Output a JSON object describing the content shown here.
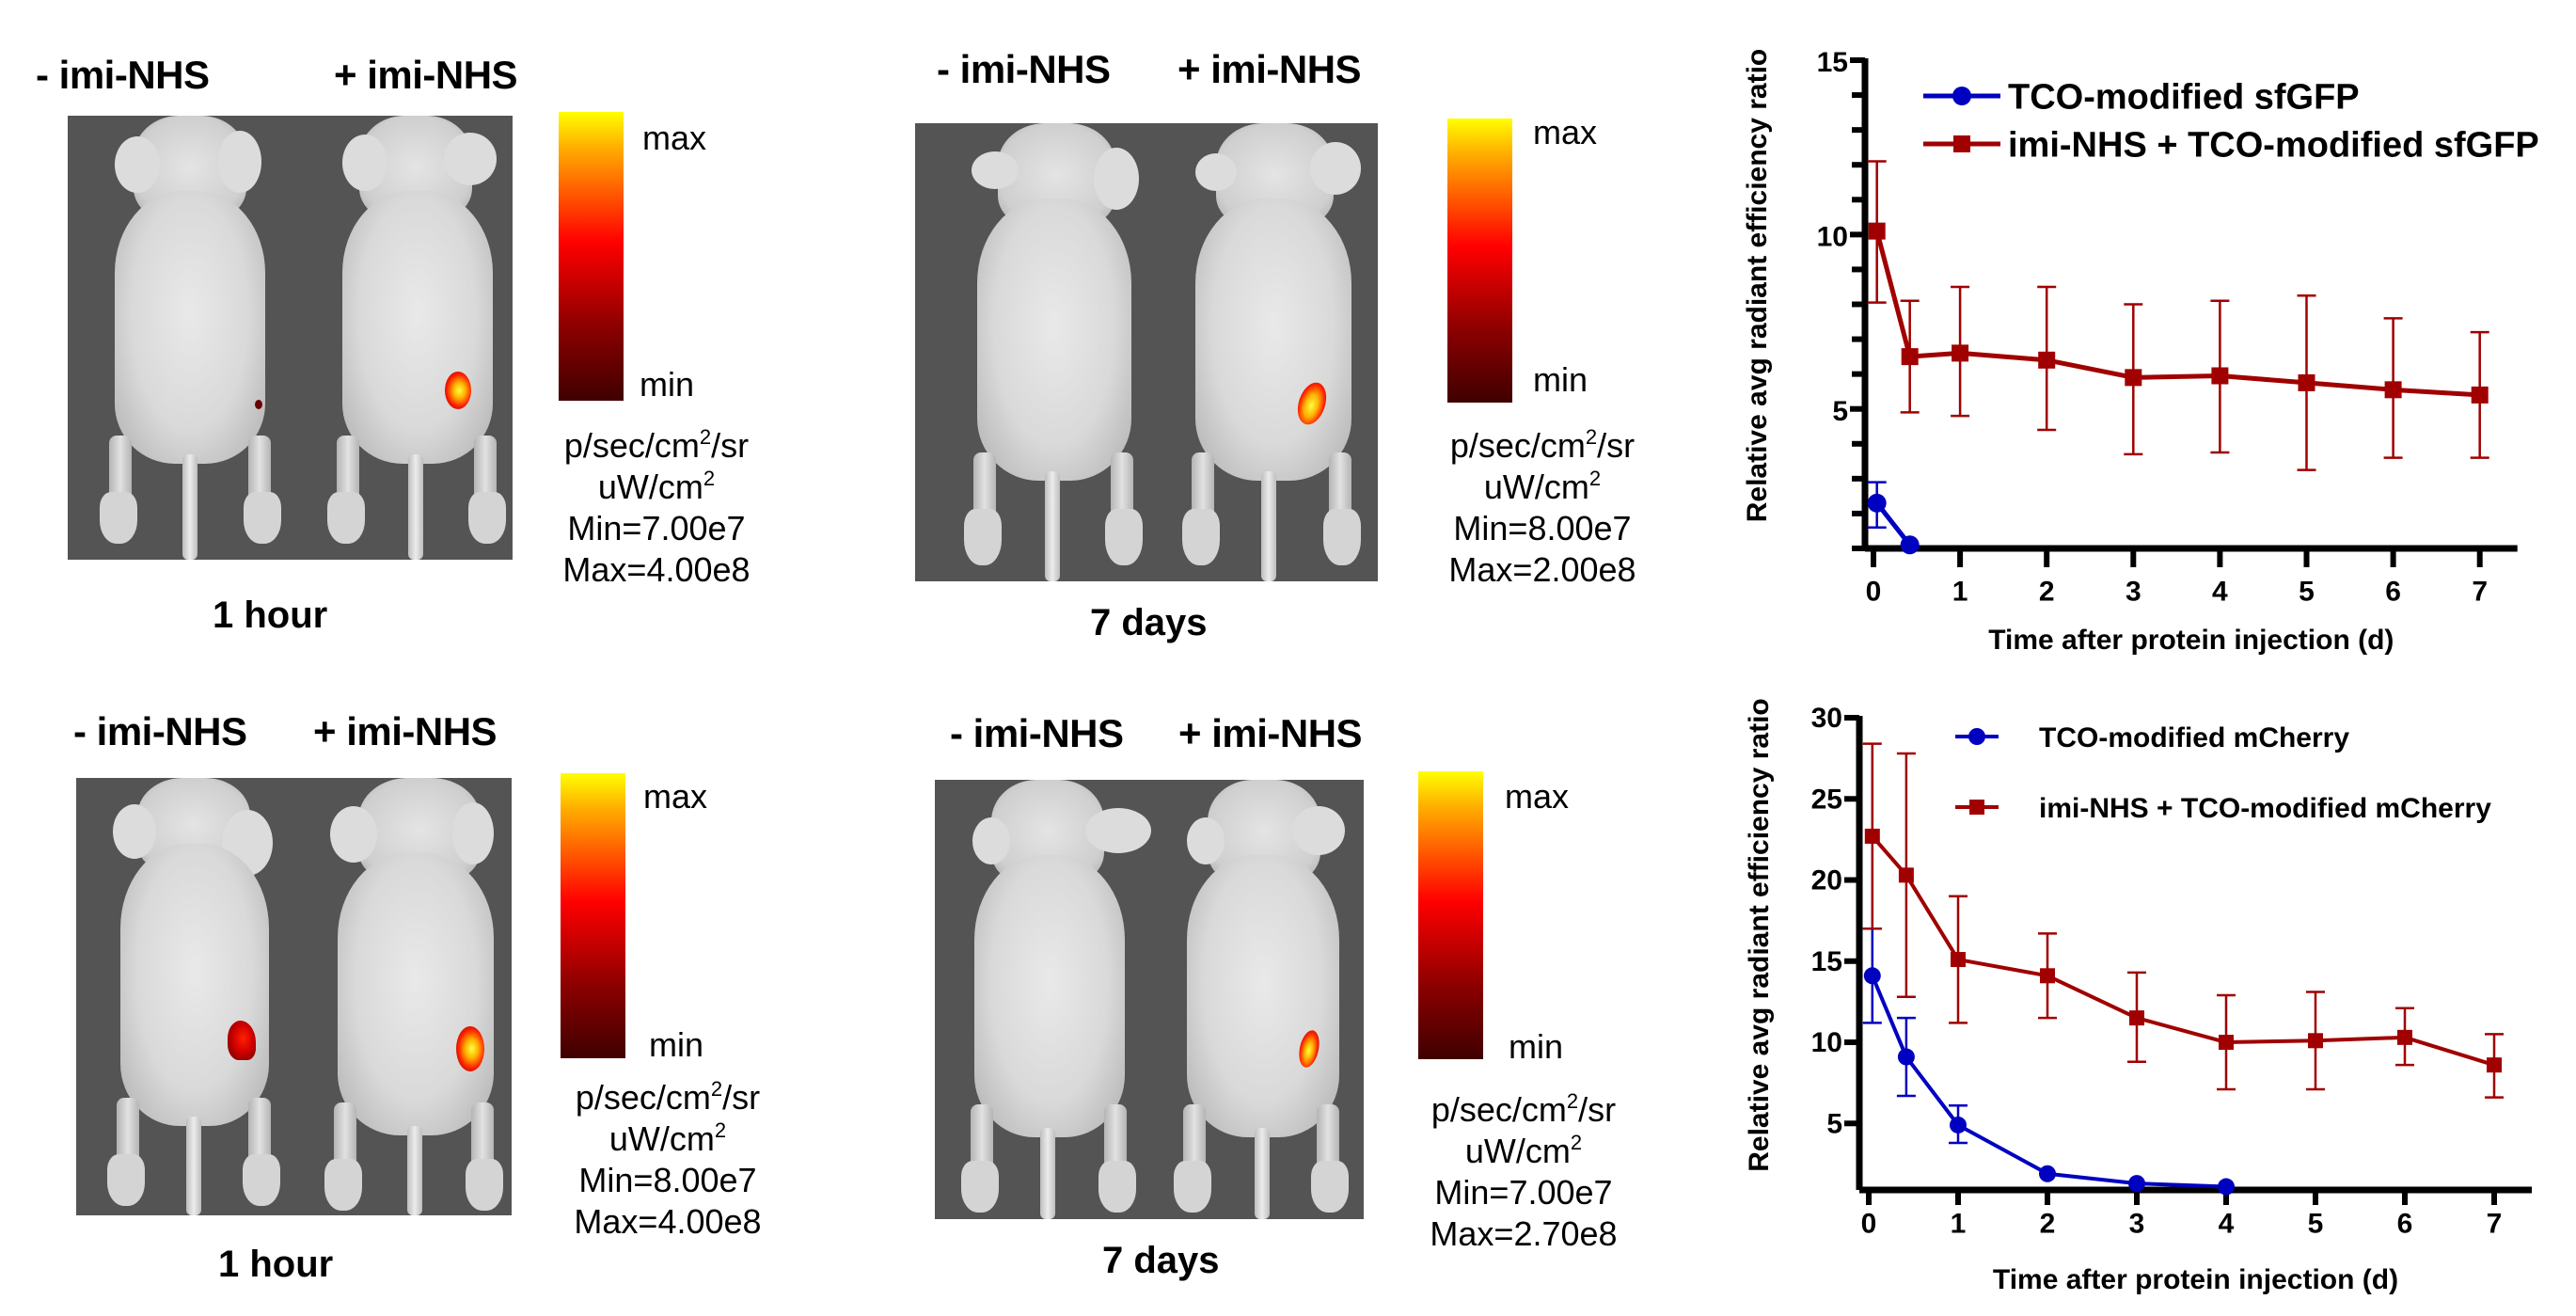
{
  "panels": [
    {
      "id": "gfp-1h",
      "left_label": "- imi-NHS",
      "right_label": "+ imi-NHS",
      "time_label": "1 hour",
      "colorbar": {
        "max_label": "max",
        "min_label": "min"
      },
      "units_line1": "p/sec/cm",
      "units_line1_sup": "2",
      "units_line1_tail": "/sr",
      "units_line2": "uW/cm",
      "units_line2_sup": "2",
      "min_text": "Min=7.00e7",
      "max_text": "Max=4.00e8"
    },
    {
      "id": "gfp-7d",
      "left_label": "- imi-NHS",
      "right_label": "+ imi-NHS",
      "time_label": "7 days",
      "colorbar": {
        "max_label": "max",
        "min_label": "min"
      },
      "units_line1": "p/sec/cm",
      "units_line1_sup": "2",
      "units_line1_tail": "/sr",
      "units_line2": "uW/cm",
      "units_line2_sup": "2",
      "min_text": "Min=8.00e7",
      "max_text": "Max=2.00e8"
    },
    {
      "id": "mcherry-1h",
      "left_label": "- imi-NHS",
      "right_label": "+ imi-NHS",
      "time_label": "1 hour",
      "colorbar": {
        "max_label": "max",
        "min_label": "min"
      },
      "units_line1": "p/sec/cm",
      "units_line1_sup": "2",
      "units_line1_tail": "/sr",
      "units_line2": "uW/cm",
      "units_line2_sup": "2",
      "min_text": "Min=8.00e7",
      "max_text": "Max=4.00e8"
    },
    {
      "id": "mcherry-7d",
      "left_label": "- imi-NHS",
      "right_label": "+ imi-NHS",
      "time_label": "7 days",
      "colorbar": {
        "max_label": "max",
        "min_label": "min"
      },
      "units_line1": "p/sec/cm",
      "units_line1_sup": "2",
      "units_line1_tail": "/sr",
      "units_line2": "uW/cm",
      "units_line2_sup": "2",
      "min_text": "Min=7.00e7",
      "max_text": "Max=2.70e8"
    }
  ],
  "colors": {
    "blue_series": "#0000c0",
    "red_series": "#a00000",
    "axis": "#000000"
  },
  "chart_data": [
    {
      "type": "line",
      "title": "",
      "xlabel": "Time after protein injection (d)",
      "ylabel": "Relative avg radiant efficiency ratio",
      "xlim": [
        0,
        7.5
      ],
      "ylim": [
        1,
        15
      ],
      "xticks": [
        0,
        1,
        2,
        3,
        4,
        5,
        6,
        7
      ],
      "yticks": [
        5,
        10,
        15
      ],
      "y_minor_step": 1,
      "grid": false,
      "legend_position": "top-right",
      "series": [
        {
          "name": "TCO-modified sfGFP",
          "color": "#0000c0",
          "marker": "circle",
          "x": [
            0.04,
            0.42
          ],
          "y": [
            2.3,
            1.1
          ],
          "err_upper": [
            2.9,
            null
          ],
          "err_lower": [
            1.6,
            null
          ]
        },
        {
          "name": "imi-NHS + TCO-modified sfGFP",
          "color": "#a00000",
          "marker": "square",
          "x": [
            0.04,
            0.42,
            1,
            2,
            3,
            4,
            5,
            6,
            7
          ],
          "y": [
            10.1,
            6.5,
            6.6,
            6.4,
            5.9,
            5.95,
            5.75,
            5.55,
            5.4
          ],
          "err_upper": [
            12.1,
            8.1,
            8.5,
            8.5,
            8.0,
            8.1,
            8.25,
            7.6,
            7.2
          ],
          "err_lower": [
            8.05,
            4.9,
            4.8,
            4.4,
            3.7,
            3.75,
            3.25,
            3.6,
            3.6
          ]
        }
      ]
    },
    {
      "type": "line",
      "title": "",
      "xlabel": "Time after protein injection (d)",
      "ylabel": "Relative avg radiant efficiency ratio",
      "xlim": [
        0,
        7.5
      ],
      "ylim": [
        0.9,
        30
      ],
      "xticks": [
        0,
        1,
        2,
        3,
        4,
        5,
        6,
        7
      ],
      "yticks": [
        5,
        10,
        15,
        20,
        25,
        30
      ],
      "grid": false,
      "legend_position": "top-right",
      "series": [
        {
          "name": "TCO-modified mCherry",
          "color": "#0000c0",
          "marker": "circle",
          "x": [
            0.04,
            0.42,
            1,
            2,
            3,
            4
          ],
          "y": [
            14.1,
            9.1,
            4.9,
            1.9,
            1.3,
            1.1
          ],
          "err_upper": [
            17.0,
            11.5,
            6.1,
            null,
            null,
            null
          ],
          "err_lower": [
            11.2,
            6.7,
            3.8,
            null,
            null,
            null
          ]
        },
        {
          "name": "imi-NHS + TCO-modified mCherry",
          "color": "#a00000",
          "marker": "square",
          "x": [
            0.04,
            0.42,
            1,
            2,
            3,
            4,
            5,
            6,
            7
          ],
          "y": [
            22.7,
            20.3,
            15.1,
            14.1,
            11.5,
            10.0,
            10.1,
            10.3,
            8.6
          ],
          "err_upper": [
            28.4,
            27.8,
            19.0,
            16.7,
            14.3,
            12.9,
            13.1,
            12.1,
            10.5
          ],
          "err_lower": [
            17.0,
            12.8,
            11.2,
            11.5,
            8.8,
            7.1,
            7.1,
            8.6,
            6.6
          ]
        }
      ]
    }
  ]
}
